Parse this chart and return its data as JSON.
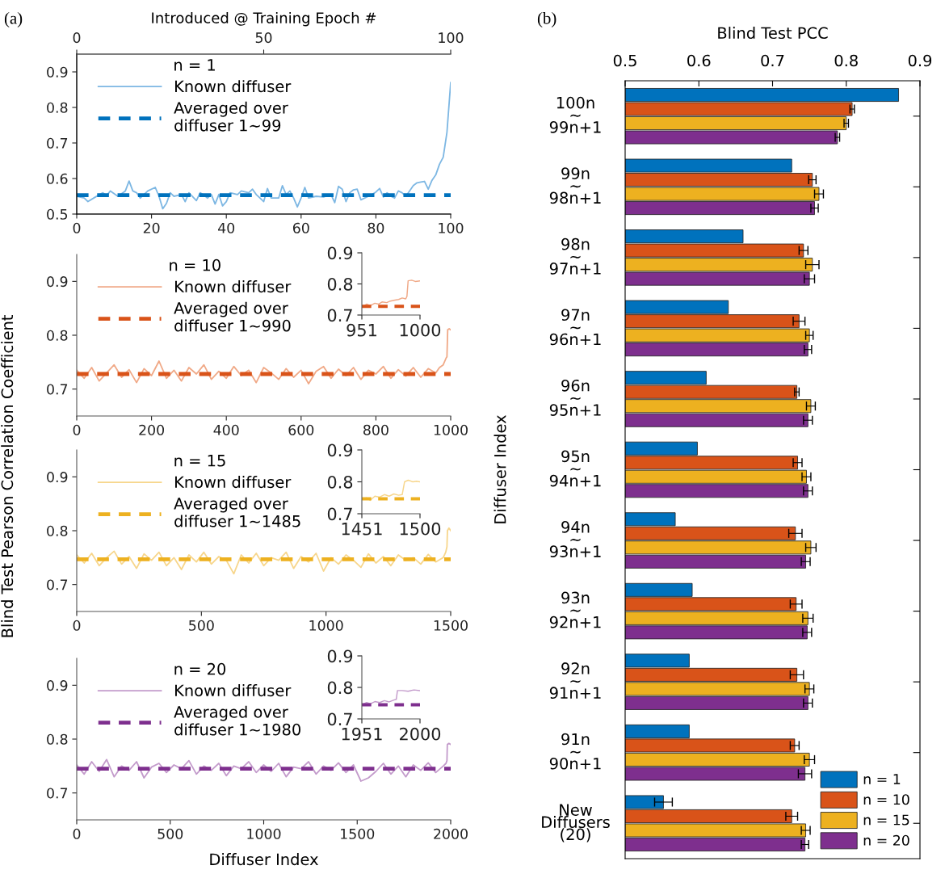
{
  "chart_data": [
    {
      "type": "line",
      "annotations": [
        "(a)"
      ],
      "legend_title": "n = 1",
      "legend": "top left",
      "xlim": [
        0,
        100
      ],
      "xticks": [
        0,
        20,
        40,
        60,
        80,
        100
      ],
      "ylim": [
        0.5,
        0.95
      ],
      "yticks": [
        0.5,
        0.6,
        0.7,
        0.8,
        0.9
      ],
      "x2lim": [
        0,
        100
      ],
      "x2ticks": [
        0,
        50,
        100
      ],
      "x2label": "Introduced @ Training Epoch #",
      "grid": false,
      "series": [
        {
          "name": "Known diffuser",
          "color": "#7db7e3",
          "line_style": "solid",
          "x": [
            0,
            2,
            3,
            5,
            7,
            8,
            9,
            11,
            13,
            14,
            15,
            16,
            17,
            19,
            21,
            22,
            23,
            24,
            25,
            26,
            28,
            29,
            30,
            32,
            33,
            35,
            36,
            37,
            38,
            39,
            40,
            41,
            43,
            44,
            46,
            47,
            48,
            49,
            50,
            51,
            52,
            54,
            55,
            56,
            57,
            58,
            59,
            60,
            61,
            62,
            64,
            66,
            68,
            69,
            70,
            71,
            72,
            73,
            74,
            75,
            76,
            78,
            79,
            80,
            81,
            82,
            83,
            84,
            85,
            86,
            87,
            88,
            89,
            90,
            91,
            92,
            93,
            94,
            95,
            96,
            97,
            98,
            99,
            100
          ],
          "values": [
            0.55,
            0.545,
            0.535,
            0.548,
            0.56,
            0.552,
            0.565,
            0.55,
            0.565,
            0.593,
            0.565,
            0.56,
            0.545,
            0.565,
            0.575,
            0.55,
            0.515,
            0.53,
            0.56,
            0.55,
            0.555,
            0.535,
            0.56,
            0.538,
            0.56,
            0.545,
            0.555,
            0.528,
            0.555,
            0.523,
            0.535,
            0.56,
            0.555,
            0.565,
            0.56,
            0.57,
            0.555,
            0.545,
            0.535,
            0.572,
            0.545,
            0.545,
            0.58,
            0.555,
            0.565,
            0.545,
            0.52,
            0.545,
            0.575,
            0.545,
            0.55,
            0.548,
            0.555,
            0.532,
            0.578,
            0.57,
            0.535,
            0.56,
            0.568,
            0.57,
            0.54,
            0.55,
            0.555,
            0.562,
            0.572,
            0.548,
            0.56,
            0.55,
            0.545,
            0.565,
            0.56,
            0.55,
            0.565,
            0.58,
            0.588,
            0.59,
            0.592,
            0.57,
            0.595,
            0.61,
            0.64,
            0.66,
            0.73,
            0.87
          ]
        },
        {
          "name": "Averaged over\ndiffuser 1~99",
          "color": "#0072bd",
          "line_style": "dashed",
          "x": [
            0,
            100
          ],
          "values": [
            0.553,
            0.553
          ]
        }
      ]
    },
    {
      "type": "line",
      "legend_title": "n = 10",
      "legend": "top left",
      "xlim": [
        0,
        1000
      ],
      "xticks": [
        0,
        200,
        400,
        600,
        800,
        1000
      ],
      "ylim": [
        0.65,
        0.95
      ],
      "yticks": [
        0.7,
        0.8,
        0.9
      ],
      "grid": false,
      "series": [
        {
          "name": "Known diffuser",
          "color": "#f0a987",
          "line_style": "solid",
          "x": [
            0,
            20,
            40,
            60,
            80,
            100,
            120,
            140,
            160,
            180,
            200,
            220,
            240,
            260,
            280,
            300,
            320,
            340,
            360,
            380,
            400,
            420,
            440,
            460,
            480,
            500,
            520,
            540,
            560,
            580,
            600,
            620,
            640,
            660,
            680,
            700,
            720,
            740,
            760,
            780,
            800,
            820,
            840,
            860,
            880,
            900,
            920,
            940,
            960,
            970,
            980,
            988,
            990,
            992,
            996,
            1000
          ],
          "values": [
            0.735,
            0.72,
            0.74,
            0.715,
            0.73,
            0.745,
            0.722,
            0.736,
            0.712,
            0.738,
            0.725,
            0.752,
            0.72,
            0.735,
            0.715,
            0.74,
            0.728,
            0.745,
            0.718,
            0.733,
            0.72,
            0.742,
            0.725,
            0.735,
            0.712,
            0.74,
            0.73,
            0.718,
            0.738,
            0.722,
            0.735,
            0.71,
            0.733,
            0.742,
            0.72,
            0.737,
            0.725,
            0.74,
            0.718,
            0.735,
            0.728,
            0.742,
            0.72,
            0.736,
            0.724,
            0.74,
            0.722,
            0.738,
            0.73,
            0.74,
            0.745,
            0.758,
            0.76,
            0.81,
            0.812,
            0.81
          ]
        },
        {
          "name": "Averaged over\ndiffuser 1~990",
          "color": "#d95319",
          "line_style": "dashed",
          "x": [
            0,
            1000
          ],
          "values": [
            0.728,
            0.728
          ]
        }
      ]
    },
    {
      "type": "line",
      "xlim": [
        951,
        1000
      ],
      "xticks": [
        951,
        1000
      ],
      "ylim": [
        0.7,
        0.9
      ],
      "yticks": [
        0.7,
        0.8,
        0.9
      ],
      "grid": false,
      "series": [
        {
          "color": "#f0a987",
          "line_style": "solid",
          "x": [
            951,
            955,
            958,
            962,
            965,
            968,
            972,
            975,
            979,
            982,
            985,
            988,
            989,
            990,
            993,
            996,
            1000
          ],
          "values": [
            0.725,
            0.735,
            0.73,
            0.738,
            0.735,
            0.742,
            0.74,
            0.745,
            0.748,
            0.75,
            0.755,
            0.752,
            0.76,
            0.81,
            0.812,
            0.808,
            0.81
          ]
        },
        {
          "color": "#d95319",
          "line_style": "dashed",
          "x": [
            951,
            1000
          ],
          "values": [
            0.728,
            0.728
          ]
        }
      ]
    },
    {
      "type": "line",
      "ylabel": "Blind Test Pearson Correlation Coefficient",
      "legend_title": "n = 15",
      "legend": "top left",
      "xlim": [
        0,
        1500
      ],
      "xticks": [
        0,
        500,
        1000,
        1500
      ],
      "ylim": [
        0.65,
        0.95
      ],
      "yticks": [
        0.7,
        0.8,
        0.9
      ],
      "grid": false,
      "series": [
        {
          "name": "Known diffuser",
          "color": "#f7d68c",
          "line_style": "solid",
          "x": [
            0,
            30,
            60,
            90,
            120,
            150,
            180,
            210,
            240,
            270,
            300,
            330,
            360,
            390,
            420,
            450,
            480,
            510,
            540,
            570,
            600,
            630,
            660,
            690,
            720,
            750,
            780,
            810,
            840,
            870,
            900,
            930,
            960,
            990,
            1020,
            1050,
            1080,
            1110,
            1140,
            1170,
            1200,
            1230,
            1260,
            1290,
            1320,
            1350,
            1380,
            1410,
            1440,
            1470,
            1480,
            1485,
            1487,
            1493,
            1500
          ],
          "values": [
            0.755,
            0.74,
            0.758,
            0.735,
            0.75,
            0.762,
            0.738,
            0.752,
            0.73,
            0.757,
            0.745,
            0.76,
            0.735,
            0.75,
            0.728,
            0.755,
            0.742,
            0.76,
            0.738,
            0.752,
            0.745,
            0.72,
            0.755,
            0.74,
            0.758,
            0.735,
            0.75,
            0.745,
            0.76,
            0.73,
            0.752,
            0.742,
            0.758,
            0.725,
            0.75,
            0.738,
            0.755,
            0.745,
            0.732,
            0.757,
            0.74,
            0.752,
            0.735,
            0.755,
            0.745,
            0.75,
            0.738,
            0.756,
            0.742,
            0.75,
            0.76,
            0.77,
            0.8,
            0.805,
            0.8
          ]
        },
        {
          "name": "Averaged over\ndiffuser 1~1485",
          "color": "#edb120",
          "line_style": "dashed",
          "x": [
            0,
            1500
          ],
          "values": [
            0.747,
            0.747
          ]
        }
      ]
    },
    {
      "type": "line",
      "xlim": [
        1451,
        1500
      ],
      "xticks": [
        1451,
        1500
      ],
      "ylim": [
        0.7,
        0.9
      ],
      "yticks": [
        0.7,
        0.8,
        0.9
      ],
      "grid": false,
      "series": [
        {
          "color": "#f7d68c",
          "line_style": "solid",
          "x": [
            1451,
            1455,
            1458,
            1462,
            1466,
            1470,
            1474,
            1478,
            1482,
            1485,
            1487,
            1490,
            1494,
            1497,
            1500
          ],
          "values": [
            0.745,
            0.75,
            0.742,
            0.755,
            0.752,
            0.76,
            0.755,
            0.762,
            0.758,
            0.76,
            0.8,
            0.805,
            0.8,
            0.802,
            0.8
          ]
        },
        {
          "color": "#edb120",
          "line_style": "dashed",
          "x": [
            1451,
            1500
          ],
          "values": [
            0.747,
            0.747
          ]
        }
      ]
    },
    {
      "type": "line",
      "legend_title": "n = 20",
      "legend": "top left",
      "xlabel": "Diffuser Index",
      "xlim": [
        0,
        2000
      ],
      "xticks": [
        0,
        500,
        1000,
        1500,
        2000
      ],
      "ylim": [
        0.65,
        0.95
      ],
      "yticks": [
        0.7,
        0.8,
        0.9
      ],
      "grid": false,
      "series": [
        {
          "name": "Known diffuser",
          "color": "#c39bcb",
          "line_style": "solid",
          "x": [
            0,
            40,
            80,
            120,
            160,
            200,
            240,
            280,
            320,
            360,
            400,
            440,
            480,
            520,
            560,
            600,
            640,
            680,
            720,
            760,
            800,
            840,
            880,
            920,
            960,
            1000,
            1040,
            1080,
            1120,
            1160,
            1200,
            1240,
            1280,
            1320,
            1360,
            1400,
            1440,
            1480,
            1520,
            1560,
            1600,
            1640,
            1680,
            1720,
            1760,
            1800,
            1840,
            1880,
            1920,
            1960,
            1975,
            1980,
            1982,
            1990,
            2000
          ],
          "values": [
            0.752,
            0.735,
            0.758,
            0.74,
            0.762,
            0.73,
            0.75,
            0.742,
            0.758,
            0.728,
            0.748,
            0.755,
            0.738,
            0.752,
            0.745,
            0.76,
            0.735,
            0.75,
            0.742,
            0.755,
            0.732,
            0.75,
            0.745,
            0.758,
            0.738,
            0.752,
            0.74,
            0.755,
            0.73,
            0.748,
            0.745,
            0.758,
            0.735,
            0.75,
            0.742,
            0.756,
            0.738,
            0.752,
            0.722,
            0.728,
            0.74,
            0.755,
            0.735,
            0.75,
            0.73,
            0.752,
            0.742,
            0.756,
            0.738,
            0.75,
            0.755,
            0.76,
            0.79,
            0.792,
            0.79
          ]
        },
        {
          "name": "Averaged over\ndiffuser 1~1980",
          "color": "#7e2f8e",
          "line_style": "dashed",
          "x": [
            0,
            2000
          ],
          "values": [
            0.745,
            0.745
          ]
        }
      ]
    },
    {
      "type": "line",
      "xlim": [
        1951,
        2000
      ],
      "xticks": [
        1951,
        2000
      ],
      "ylim": [
        0.7,
        0.9
      ],
      "yticks": [
        0.7,
        0.8,
        0.9
      ],
      "grid": false,
      "series": [
        {
          "color": "#c39bcb",
          "line_style": "solid",
          "x": [
            1951,
            1955,
            1958,
            1962,
            1966,
            1970,
            1974,
            1978,
            1980,
            1981,
            1985,
            1990,
            1995,
            2000
          ],
          "values": [
            0.745,
            0.752,
            0.748,
            0.755,
            0.752,
            0.758,
            0.754,
            0.76,
            0.762,
            0.79,
            0.79,
            0.788,
            0.792,
            0.79
          ]
        },
        {
          "color": "#7e2f8e",
          "line_style": "dashed",
          "x": [
            1951,
            2000
          ],
          "values": [
            0.745,
            0.745
          ]
        }
      ]
    },
    {
      "type": "bar",
      "orientation": "horizontal",
      "annotations": [
        "(b)"
      ],
      "xlabel": "Blind Test PCC",
      "ylabel": "Diffuser Index",
      "xlim": [
        0.5,
        0.9
      ],
      "xticks": [
        0.5,
        0.6,
        0.7,
        0.8,
        0.9
      ],
      "legend": "bottom right",
      "grid": false,
      "categories": [
        "100n\n~\n99n+1",
        "99n\n~\n98n+1",
        "98n\n~\n97n+1",
        "97n\n~\n96n+1",
        "96n\n~\n95n+1",
        "95n\n~\n94n+1",
        "94n\n~\n93n+1",
        "93n\n~\n92n+1",
        "92n\n~\n91n+1",
        "91n\n~\n90n+1",
        "New\nDiffusers\n(20)"
      ],
      "series": [
        {
          "name": "n = 1",
          "color": "#0072bd",
          "values": [
            0.871,
            0.726,
            0.66,
            0.64,
            0.61,
            0.598,
            0.568,
            0.591,
            0.587,
            0.587,
            0.552
          ],
          "errors": [
            null,
            null,
            null,
            null,
            null,
            null,
            null,
            null,
            null,
            null,
            0.012
          ]
        },
        {
          "name": "n = 10",
          "color": "#d95319",
          "values": [
            0.808,
            0.754,
            0.742,
            0.736,
            0.733,
            0.734,
            0.731,
            0.732,
            0.733,
            0.73,
            0.726
          ],
          "errors": [
            0.003,
            0.005,
            0.006,
            0.008,
            0.003,
            0.006,
            0.009,
            0.008,
            0.009,
            0.006,
            0.008
          ]
        },
        {
          "name": "n = 15",
          "color": "#edb120",
          "values": [
            0.8,
            0.763,
            0.754,
            0.75,
            0.752,
            0.746,
            0.752,
            0.748,
            0.75,
            0.75,
            0.745
          ],
          "errors": [
            0.003,
            0.006,
            0.009,
            0.005,
            0.006,
            0.006,
            0.007,
            0.007,
            0.006,
            0.007,
            0.006
          ]
        },
        {
          "name": "n = 20",
          "color": "#7e2f8e",
          "values": [
            0.788,
            0.757,
            0.75,
            0.748,
            0.748,
            0.748,
            0.745,
            0.747,
            0.748,
            0.744,
            0.744
          ],
          "errors": [
            0.003,
            0.005,
            0.007,
            0.005,
            0.006,
            0.006,
            0.006,
            0.006,
            0.006,
            0.009,
            0.005
          ]
        }
      ]
    }
  ]
}
